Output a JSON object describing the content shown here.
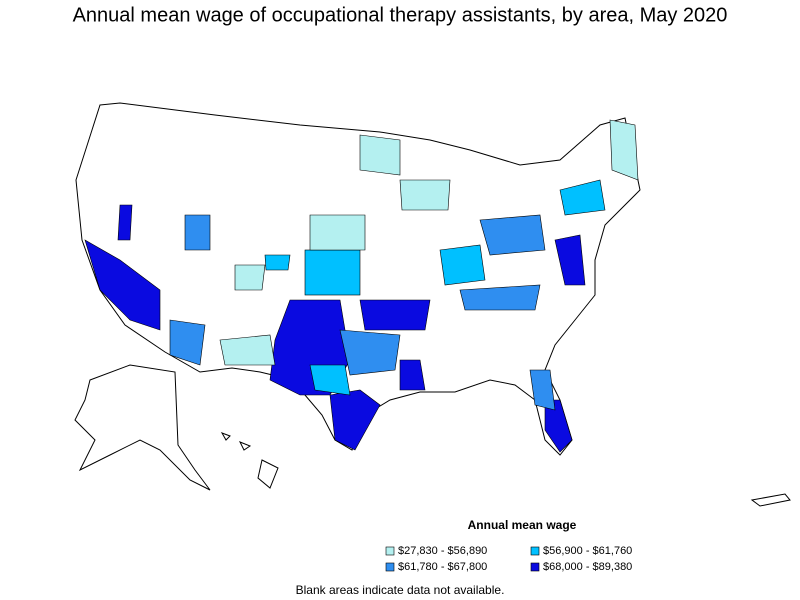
{
  "title": "Annual mean wage of occupational therapy assistants, by area, May 2020",
  "legend": {
    "title": "Annual mean wage",
    "items": [
      {
        "label": "$27,830 - $56,890",
        "color": "#b4f0f0"
      },
      {
        "label": "$56,900 - $61,760",
        "color": "#00c0ff"
      },
      {
        "label": "$61,780 - $67,800",
        "color": "#2f8ef0"
      },
      {
        "label": "$68,000 - $89,380",
        "color": "#0a0ae0"
      }
    ]
  },
  "footnote": "Blank areas indicate data not available."
}
